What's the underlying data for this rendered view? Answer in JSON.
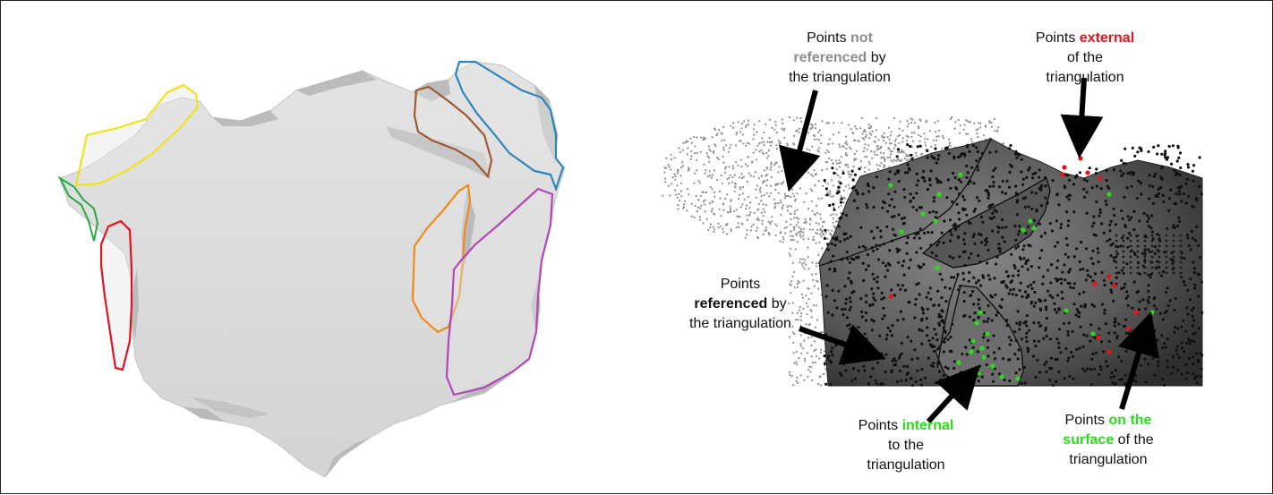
{
  "colors": {
    "mesh_fill": "#d9d9d9",
    "mesh_shadow": "#a6a6a6",
    "dense_mesh": "#4a4a4a",
    "point_cloud": "#8c8c8c",
    "not_referenced": "#8c8c8c",
    "referenced": "#111111",
    "external": "#e8141c",
    "internal": "#2bdc1b",
    "surface": "#2bdc1b",
    "arrow": "#000000"
  },
  "left_panel": {
    "regions": [
      {
        "id": "yellow",
        "color": "#f2e21c"
      },
      {
        "id": "green",
        "color": "#27a844"
      },
      {
        "id": "red",
        "color": "#e0141c"
      },
      {
        "id": "brown",
        "color": "#9c5a34"
      },
      {
        "id": "blue",
        "color": "#2a86bd"
      },
      {
        "id": "orange",
        "color": "#f08a1a"
      },
      {
        "id": "purple",
        "color": "#b347b8"
      }
    ]
  },
  "right_panel": {
    "annotations": [
      {
        "id": "not-referenced",
        "prefix": "Points ",
        "highlight": "not referenced",
        "suffix": " by the triangulation",
        "lines": [
          "Points |not|",
          "|referenced| by",
          "the triangulation"
        ],
        "color_key": "not_referenced"
      },
      {
        "id": "external",
        "prefix": "Points ",
        "highlight": "external",
        "suffix": " of the triangulation",
        "lines": [
          "Points |external|",
          "of the",
          "triangulation"
        ],
        "color_key": "external"
      },
      {
        "id": "referenced",
        "prefix": "Points ",
        "highlight": "referenced",
        "suffix": " by the triangulation",
        "lines": [
          "Points",
          "|referenced| by",
          "the triangulation"
        ],
        "color_key": "referenced"
      },
      {
        "id": "internal",
        "prefix": "Points ",
        "highlight": "internal",
        "suffix": " to the triangulation",
        "lines": [
          "Points |internal|",
          "to the",
          "triangulation"
        ],
        "color_key": "internal"
      },
      {
        "id": "surface",
        "prefix": "Points ",
        "highlight": "on the surface",
        "suffix": " of the triangulation",
        "lines": [
          "Points |on the|",
          "|surface| of the",
          "triangulation"
        ],
        "color_key": "surface"
      }
    ]
  }
}
